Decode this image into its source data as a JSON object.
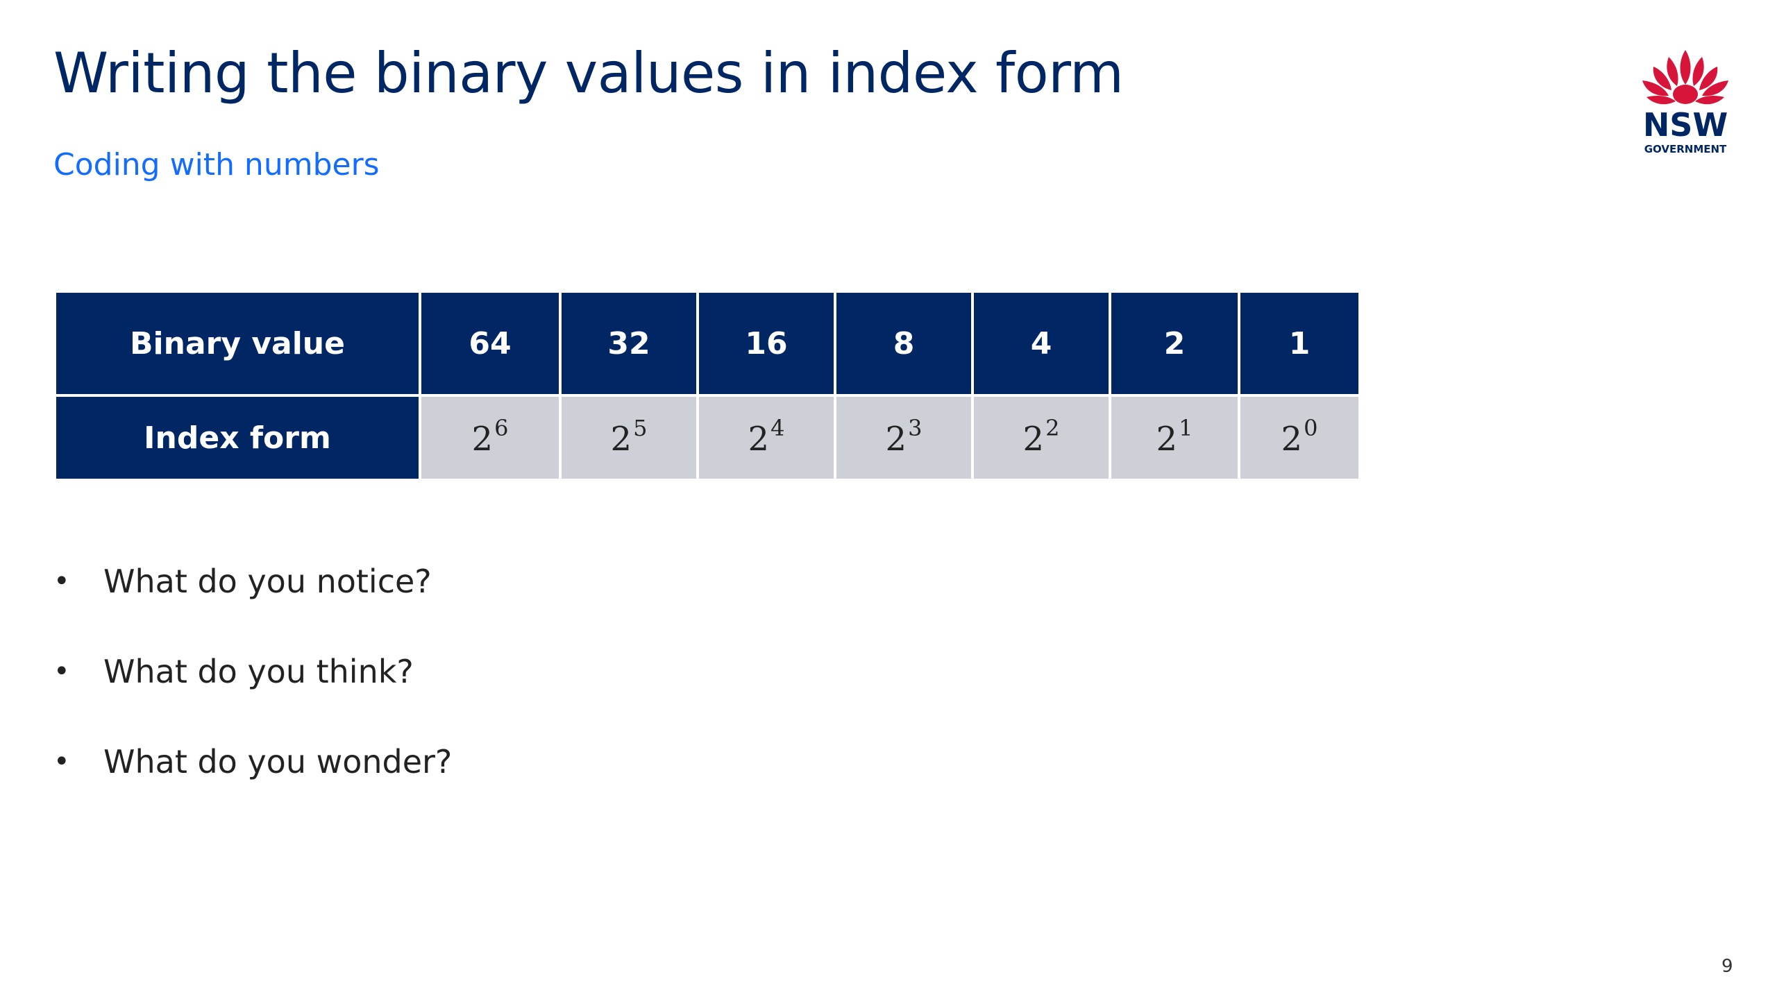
{
  "slide": {
    "title": "Writing the binary values in index form",
    "subtitle": "Coding with numbers",
    "page_number": "9"
  },
  "logo": {
    "name": "NSW Government logo",
    "wordmark": "NSW",
    "subtext": "GOVERNMENT",
    "icon": "waratah-icon"
  },
  "table": {
    "row_labels": {
      "binary": "Binary value",
      "index": "Index form"
    },
    "binary_values": [
      "64",
      "32",
      "16",
      "8",
      "4",
      "2",
      "1"
    ],
    "index_forms": [
      {
        "base": "2",
        "exponent": "6"
      },
      {
        "base": "2",
        "exponent": "5"
      },
      {
        "base": "2",
        "exponent": "4"
      },
      {
        "base": "2",
        "exponent": "3"
      },
      {
        "base": "2",
        "exponent": "2"
      },
      {
        "base": "2",
        "exponent": "1"
      },
      {
        "base": "2",
        "exponent": "0"
      }
    ]
  },
  "prompts": [
    "What do you notice?",
    "What do you think?",
    "What do you wonder?"
  ],
  "colors": {
    "title": "#002664",
    "subtitle": "#146cfd",
    "header_fill": "#002664",
    "index_fill": "#cdd0d6",
    "logo_red": "#d7153a"
  }
}
